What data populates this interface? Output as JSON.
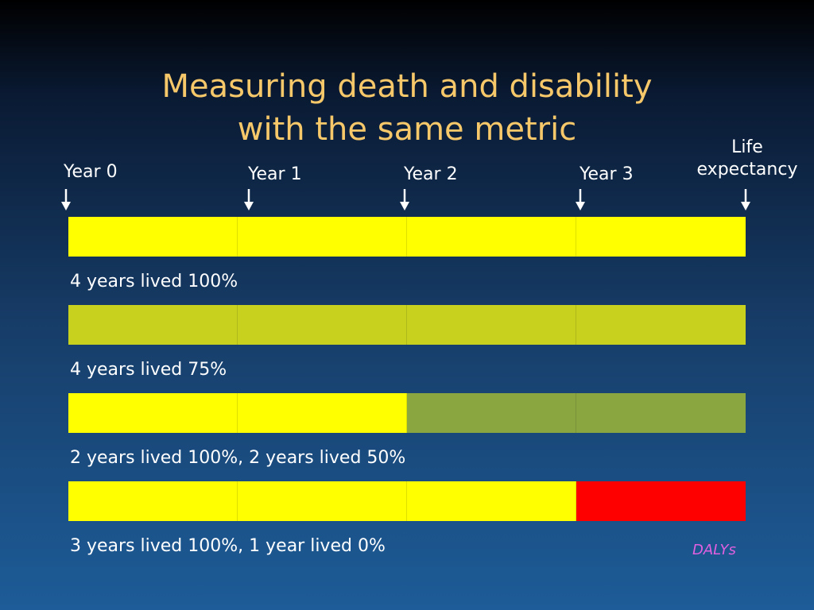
{
  "title": {
    "line1": "Measuring death and disability",
    "line2": "with the same metric"
  },
  "markers": {
    "year0": "Year 0",
    "year1": "Year 1",
    "year2": "Year 2",
    "year3": "Year 3",
    "life_line1": "Life",
    "life_line2": "expectancy"
  },
  "colors": {
    "full_health": "#ffff00",
    "health_75": "#c8d21e",
    "health_50": "#8aa640",
    "health_0": "#ff0000",
    "title": "#f7c86a",
    "dalys": "#e060e0"
  },
  "rows": [
    {
      "caption": "4 years lived 100%",
      "years": [
        1.0,
        1.0,
        1.0,
        1.0
      ]
    },
    {
      "caption": "4 years lived 75%",
      "years": [
        0.75,
        0.75,
        0.75,
        0.75
      ]
    },
    {
      "caption": "2 years lived 100%, 2 years lived 50%",
      "years": [
        1.0,
        1.0,
        0.5,
        0.5
      ]
    },
    {
      "caption": "3 years lived 100%, 1 year lived 0%",
      "years": [
        1.0,
        1.0,
        1.0,
        0.0
      ]
    }
  ],
  "footer_label": "DALYs"
}
